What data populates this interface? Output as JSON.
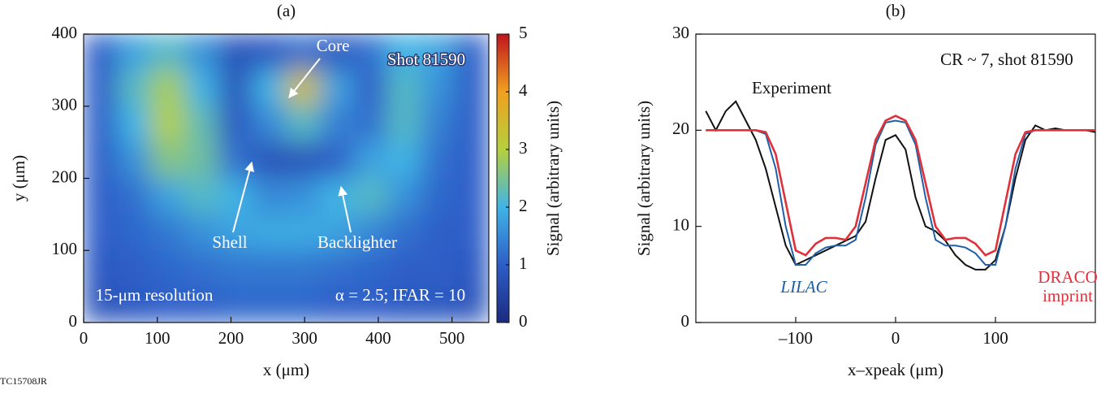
{
  "figure_id": "TC15708JR",
  "chart_data": [
    {
      "type": "heatmap",
      "title": "(a)",
      "xlabel": "x (μm)",
      "ylabel": "y (μm)",
      "xlim": [
        0,
        550
      ],
      "ylim": [
        0,
        400
      ],
      "xticks": [
        0,
        100,
        200,
        300,
        400,
        500
      ],
      "yticks": [
        0,
        100,
        200,
        300,
        400
      ],
      "z": [
        [
          1.0,
          1.8,
          2.2,
          1.6,
          0.8,
          0.9,
          1.2,
          0.9,
          1.2,
          2.0,
          1.8,
          1.0
        ],
        [
          1.0,
          2.2,
          2.9,
          2.0,
          0.8,
          2.0,
          3.4,
          1.8,
          1.0,
          2.2,
          1.6,
          1.0
        ],
        [
          1.0,
          2.0,
          3.0,
          2.3,
          0.9,
          1.5,
          2.2,
          1.4,
          1.2,
          2.2,
          1.4,
          1.0
        ],
        [
          1.0,
          1.6,
          2.6,
          2.4,
          1.2,
          0.8,
          0.8,
          1.0,
          1.8,
          2.0,
          1.2,
          1.0
        ],
        [
          1.0,
          1.2,
          1.8,
          2.2,
          2.0,
          1.5,
          1.6,
          2.0,
          2.2,
          1.6,
          1.1,
          1.0
        ],
        [
          1.0,
          1.1,
          1.3,
          1.6,
          1.8,
          1.9,
          1.9,
          1.8,
          1.5,
          1.2,
          1.0,
          1.0
        ],
        [
          0.9,
          1.0,
          1.1,
          1.2,
          1.3,
          1.3,
          1.3,
          1.2,
          1.1,
          1.0,
          1.0,
          0.9
        ],
        [
          0.8,
          0.9,
          1.0,
          1.0,
          1.1,
          1.1,
          1.1,
          1.0,
          1.0,
          0.9,
          0.9,
          0.8
        ]
      ],
      "colormap": [
        "#1c2a80",
        "#2d5ec8",
        "#40b4e6",
        "#b5d03c",
        "#f0a020",
        "#c0141c"
      ],
      "clim": [
        0,
        5
      ],
      "cticks": [
        0,
        1,
        2,
        3,
        4,
        5
      ],
      "clabel": "Signal (arbitrary units)",
      "annotations": [
        "Core",
        "Shot 81590",
        "Shell",
        "Backlighter",
        "15-μm resolution",
        "α = 2.5; IFAR = 10"
      ]
    },
    {
      "type": "line",
      "title": "(b)",
      "xlabel": "x–xpeak (μm)",
      "ylabel": "Signal (arbitrary units)",
      "xlim": [
        -200,
        200
      ],
      "ylim": [
        0,
        30
      ],
      "xticks": [
        {
          "value": -100,
          "label": "–100"
        },
        0,
        100
      ],
      "yticks": [
        0,
        10,
        20,
        30
      ],
      "annotations": [
        "CR ~ 7, shot 81590"
      ],
      "x": [
        -190,
        -180,
        -170,
        -160,
        -150,
        -140,
        -130,
        -120,
        -110,
        -100,
        -90,
        -80,
        -70,
        -60,
        -50,
        -40,
        -30,
        -20,
        -10,
        0,
        10,
        20,
        30,
        40,
        50,
        60,
        70,
        80,
        90,
        100,
        110,
        120,
        130,
        140,
        150,
        160,
        170,
        180,
        190,
        200
      ],
      "series": [
        {
          "name": "Experiment",
          "color": "#111111",
          "values": [
            22,
            20,
            22,
            23,
            21,
            19,
            16,
            12,
            8,
            6,
            6.5,
            7,
            7.5,
            8,
            8.5,
            9,
            10.5,
            15,
            19,
            19.5,
            18,
            13,
            10,
            9.5,
            8.5,
            7,
            6,
            5.5,
            5.5,
            6.5,
            10,
            15,
            19,
            20.5,
            20,
            20.2,
            20,
            20,
            20,
            19.8
          ]
        },
        {
          "name": "LILAC",
          "color": "#1f5fa8",
          "values": [
            20,
            20,
            20,
            20,
            20,
            20,
            19.6,
            16,
            10,
            6,
            6,
            7.2,
            7.8,
            8,
            8,
            8.6,
            13,
            18.5,
            20.8,
            21,
            20.8,
            18.5,
            13,
            8.6,
            8,
            8,
            7.8,
            7.2,
            6,
            6,
            10,
            16,
            19.6,
            20,
            20,
            20,
            20,
            20,
            20,
            20
          ]
        },
        {
          "name": "DRACO imprint",
          "color": "#e0303a",
          "values": [
            20,
            20,
            20,
            20,
            20,
            20,
            19.8,
            17.5,
            12.5,
            7.5,
            7,
            8.2,
            8.8,
            8.8,
            8.6,
            10,
            14.5,
            19,
            21,
            21.5,
            21,
            19,
            14.5,
            10,
            8.6,
            8.8,
            8.8,
            8.2,
            7,
            7.5,
            12.5,
            17.5,
            19.8,
            20,
            20,
            20,
            20,
            20,
            20,
            20
          ]
        }
      ]
    }
  ]
}
